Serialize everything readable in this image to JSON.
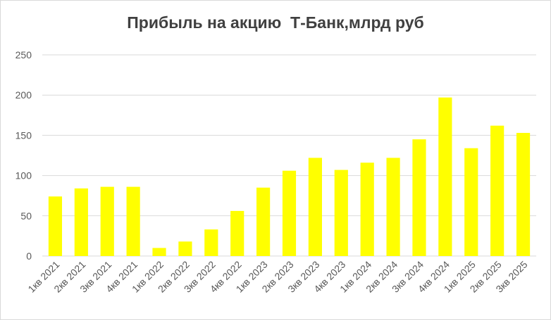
{
  "chart_data": {
    "type": "bar",
    "title": "Прибыль на акцию  Т-Банк,млрд руб",
    "categories": [
      "1кв 2021",
      "2кв 2021",
      "3кв 2021",
      "4кв 2021",
      "1кв 2022",
      "2кв 2022",
      "3кв 2022",
      "4кв 2022",
      "1кв 2023",
      "2кв 2023",
      "3кв 2023",
      "4кв 2023",
      "1кв 2024",
      "2кв 2024",
      "3кв 2024",
      "4кв 2024",
      "1кв 2025",
      "2кв 2025",
      "3кв 2025"
    ],
    "values": [
      74,
      84,
      86,
      86,
      10,
      18,
      33,
      56,
      85,
      106,
      122,
      107,
      116,
      122,
      145,
      197,
      134,
      162,
      153
    ],
    "ylim": [
      0,
      250
    ],
    "yticks": [
      0,
      50,
      100,
      150,
      200,
      250
    ],
    "grid": true,
    "legend": "none",
    "bar_color": "#FFFF00",
    "grid_color": "#d9d9d9",
    "xlabel": "",
    "ylabel": ""
  }
}
